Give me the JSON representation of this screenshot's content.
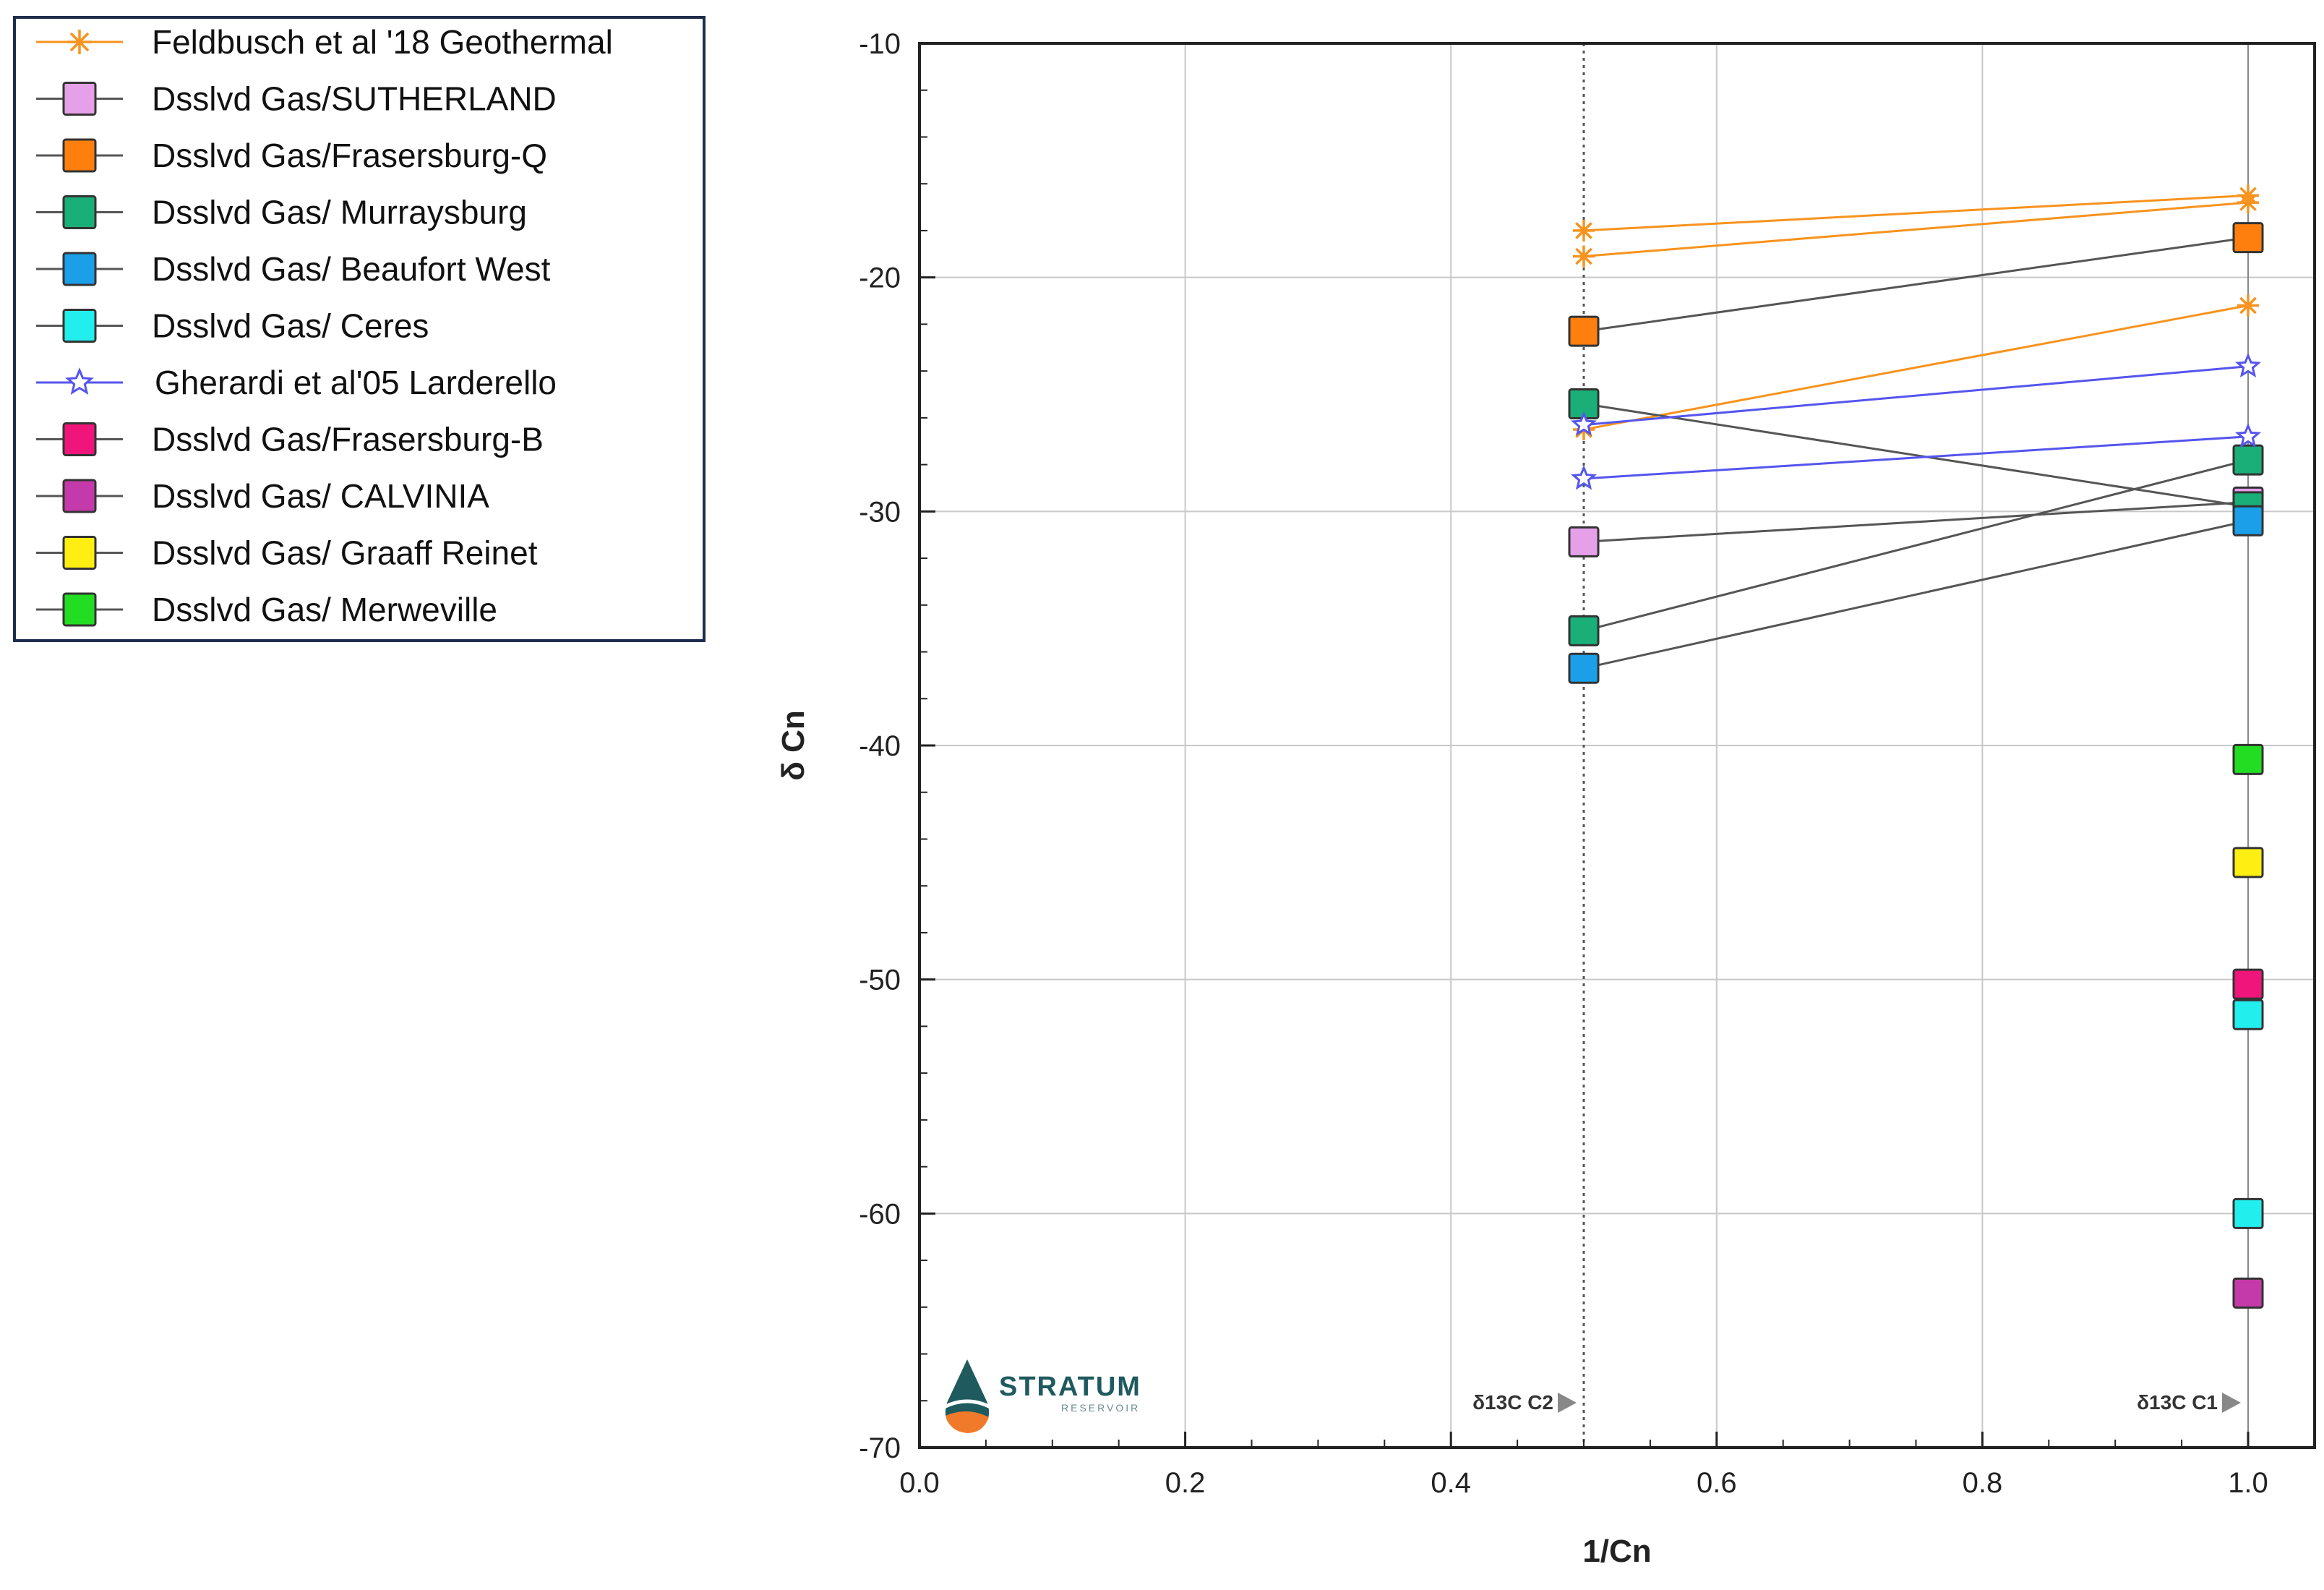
{
  "chart_data": {
    "type": "line",
    "xlabel": "1/Cn",
    "ylabel": "δ Cn",
    "xlim": [
      0.0,
      1.0
    ],
    "ylim": [
      -70,
      -10
    ],
    "x_ticks": [
      "0.0",
      "0.2",
      "0.4",
      "0.6",
      "0.8",
      "1.0"
    ],
    "y_ticks": [
      "-10",
      "-20",
      "-30",
      "-40",
      "-50",
      "-60",
      "-70"
    ],
    "grid": true,
    "legend_position": "top-left outside",
    "reference_lines": [
      {
        "x": 0.5,
        "label": "δ13C C2"
      },
      {
        "x": 1.0,
        "label": "δ13C C1"
      }
    ],
    "series": [
      {
        "name": "Feldbusch et al '18 Geothermal",
        "marker": "asterisk",
        "color": "#f7931e",
        "line_color": "#f7931e",
        "lines": [
          [
            [
              0.5,
              -18.0
            ],
            [
              1.0,
              -16.5
            ]
          ],
          [
            [
              0.5,
              -19.1
            ],
            [
              1.0,
              -16.8
            ]
          ],
          [
            [
              0.5,
              -26.5
            ],
            [
              1.0,
              -21.2
            ]
          ]
        ]
      },
      {
        "name": "Dsslvd Gas/SUTHERLAND",
        "marker": "square",
        "color": "#e6a0e8",
        "line_color": "#555555",
        "lines": [
          [
            [
              0.5,
              -31.3
            ],
            [
              1.0,
              -29.6
            ]
          ]
        ]
      },
      {
        "name": "Dsslvd Gas/Frasersburg-Q",
        "marker": "square",
        "color": "#ff7f0e",
        "line_color": "#555555",
        "lines": [
          [
            [
              0.5,
              -22.3
            ],
            [
              1.0,
              -18.3
            ]
          ]
        ]
      },
      {
        "name": "Dsslvd Gas/ Murraysburg",
        "marker": "square",
        "color": "#1aae78",
        "line_color": "#555555",
        "lines": [
          [
            [
              0.5,
              -25.4
            ],
            [
              1.0,
              -29.8
            ]
          ],
          [
            [
              0.5,
              -35.1
            ],
            [
              1.0,
              -27.8
            ]
          ]
        ]
      },
      {
        "name": "Dsslvd Gas/ Beaufort West",
        "marker": "square",
        "color": "#1a9fe8",
        "line_color": "#555555",
        "lines": [
          [
            [
              0.5,
              -36.7
            ],
            [
              1.0,
              -30.4
            ]
          ]
        ]
      },
      {
        "name": "Dsslvd Gas/ Ceres",
        "marker": "square",
        "color": "#22eeee",
        "line_color": "#555555",
        "points": [
          [
            1.0,
            -51.5
          ],
          [
            1.0,
            -60.0
          ]
        ]
      },
      {
        "name": "Gherardi et al'05 Larderello",
        "marker": "star",
        "color": "#5555ee",
        "line_color": "#5555ee",
        "lines": [
          [
            [
              0.5,
              -26.3
            ],
            [
              1.0,
              -23.8
            ]
          ],
          [
            [
              0.5,
              -28.6
            ],
            [
              1.0,
              -26.8
            ]
          ]
        ]
      },
      {
        "name": "Dsslvd Gas/Frasersburg-B",
        "marker": "square",
        "color": "#f0157a",
        "line_color": "#555555",
        "points": [
          [
            1.0,
            -50.2
          ]
        ]
      },
      {
        "name": "Dsslvd Gas/ CALVINIA",
        "marker": "square",
        "color": "#c43aaa",
        "line_color": "#555555",
        "points": [
          [
            1.0,
            -63.4
          ]
        ]
      },
      {
        "name": "Dsslvd Gas/ Graaff Reinet",
        "marker": "square",
        "color": "#ffee11",
        "line_color": "#555555",
        "points": [
          [
            1.0,
            -45.0
          ]
        ]
      },
      {
        "name": "Dsslvd Gas/ Merweville",
        "marker": "square",
        "color": "#22dd22",
        "line_color": "#555555",
        "points": [
          [
            1.0,
            -40.6
          ]
        ]
      }
    ]
  },
  "logo": {
    "name": "STRATUM",
    "sub": "RESERVOIR"
  },
  "colors": {
    "grid": "#c8c8c8",
    "frame": "#222222",
    "legend_border": "#1f2d4d"
  }
}
